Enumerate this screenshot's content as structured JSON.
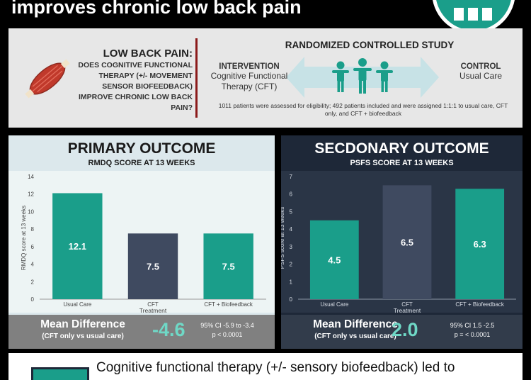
{
  "header": {
    "title": "improves chronic low back pain"
  },
  "question": {
    "heading": "LOW BACK PAIN:",
    "body": "DOES COGNITIVE FUNCTIONAL THERAPY (+/- MOVEMENT SENSOR BIOFEEDBACK) IMPROVE CHRONIC LOW BACK PAIN?"
  },
  "study": {
    "title": "RANDOMIZED CONTROLLED STUDY",
    "intervention_label": "INTERVENTION",
    "intervention_desc": "Cognitive Functional Therapy (CFT)",
    "control_label": "CONTROL",
    "control_desc": "Usual Care",
    "note": "1011 patients were assessed for eligibility; 492 patients included and were assigned 1:1:1 to usual care, CFT only, and CFT + biofeedback"
  },
  "primary": {
    "title": "PRIMARY OUTCOME",
    "subtitle": "RMDQ SCORE AT 13 WEEKS",
    "md_title": "Mean Difference",
    "md_compare": "(CFT only vs usual care)",
    "md_value": "-4.6",
    "ci": "95% CI -5.9 to -3.4",
    "p": "p < 0.0001"
  },
  "secondary": {
    "title": "SECDONARY OUTCOME",
    "subtitle": "PSFS SCORE AT 13 WEEKS",
    "md_title": "Mean Difference",
    "md_compare": "(CFT only vs usual care)",
    "md_value": "2.0",
    "ci": "95% CI 1.5 -2.5",
    "p": "p = < 0.0001"
  },
  "conclusion": {
    "text": "Cognitive functional therapy (+/- sensory biofeedback) led to"
  },
  "colors": {
    "teal": "#1a9e8a",
    "slate": "#3f4a60",
    "accent": "#6fd8c6",
    "red_divider": "#8b1a1a"
  },
  "chart_data": [
    {
      "type": "bar",
      "categories": [
        "Usual Care",
        "CFT",
        "CFT + Biofeedback"
      ],
      "values": [
        12.1,
        7.5,
        7.5
      ],
      "data_labels": [
        "12.1",
        "7.5",
        "7.5"
      ],
      "xlabel": "Treatment",
      "ylabel": "RMDQ score at 13 weeks",
      "ylim": [
        0,
        14
      ],
      "yticks": [
        0,
        2,
        4,
        6,
        8,
        10,
        12,
        14
      ],
      "grid": false,
      "bar_colors": [
        "#1a9e8a",
        "#3f4a60",
        "#1a9e8a"
      ]
    },
    {
      "type": "bar",
      "categories": [
        "Usual Care",
        "CFT",
        "CFT + Biofeedback"
      ],
      "values": [
        4.5,
        6.5,
        6.3
      ],
      "data_labels": [
        "4.5",
        "6.5",
        "6.3"
      ],
      "xlabel": "Treatment",
      "ylabel": "PSFS score at 13 weeks",
      "ylim": [
        0,
        7
      ],
      "yticks": [
        0,
        1,
        2,
        3,
        4,
        5,
        6,
        7
      ],
      "grid": false,
      "bar_colors": [
        "#1a9e8a",
        "#3f4a60",
        "#1a9e8a"
      ]
    }
  ]
}
